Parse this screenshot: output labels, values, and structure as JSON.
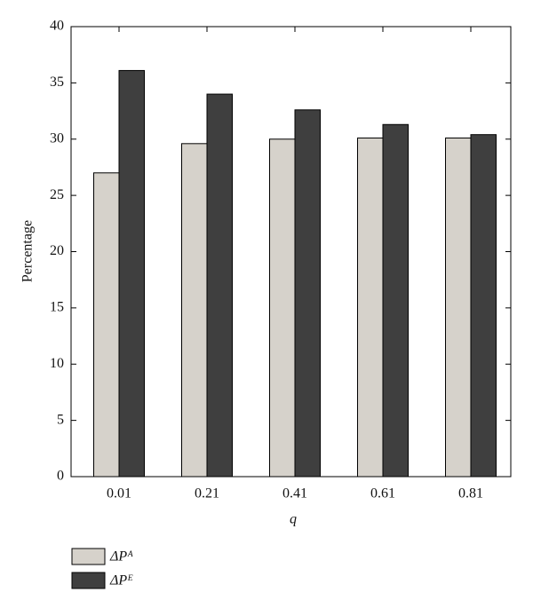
{
  "chart_data": {
    "type": "bar",
    "y_label": "Percentage",
    "x_label": "q",
    "categories": [
      "0.01",
      "0.21",
      "0.41",
      "0.61",
      "0.81"
    ],
    "series": [
      {
        "name": "ΔPᴬ",
        "color": "#d6d2cb",
        "values": [
          27.0,
          29.6,
          30.0,
          30.1,
          30.1
        ]
      },
      {
        "name": "ΔPᴱ",
        "color": "#3f3f3f",
        "values": [
          36.1,
          34.0,
          32.6,
          31.3,
          30.4
        ]
      }
    ],
    "ylim": [
      0,
      40
    ],
    "yticks": [
      0,
      5,
      10,
      15,
      20,
      25,
      30,
      35,
      40
    ]
  }
}
